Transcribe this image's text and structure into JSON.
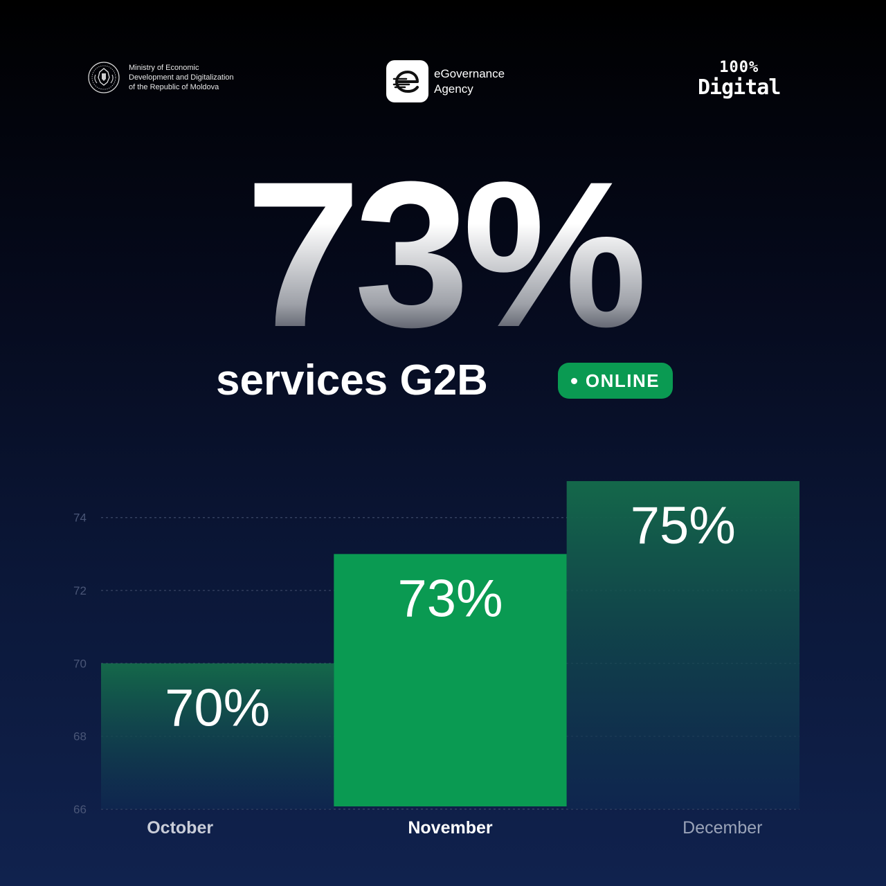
{
  "header": {
    "ministry_lines": [
      "Ministry of Economic",
      "Development and Digitalization",
      "of the Republic of Moldova"
    ],
    "egov_lines": [
      "eGovernance",
      "Agency"
    ],
    "digital_top": "100%",
    "digital_bottom": "Digital"
  },
  "hero": {
    "value": "73%",
    "subtitle": "services G2B",
    "badge": "ONLINE"
  },
  "colors": {
    "accent_green": "#0a9a52",
    "bar_dark_top": "#14684a",
    "bar_dark_bottom": "#0f2a52",
    "tick_text": "#4a5677"
  },
  "chart_data": {
    "type": "bar",
    "categories": [
      "October",
      "November",
      "December"
    ],
    "values": [
      70,
      73,
      75
    ],
    "value_labels": [
      "70%",
      "73%",
      "75%"
    ],
    "highlight_index": 1,
    "ylim": [
      66,
      75.4
    ],
    "yticks": [
      66,
      68,
      70,
      72,
      74
    ],
    "grid": true,
    "xlabel": "",
    "ylabel": ""
  }
}
